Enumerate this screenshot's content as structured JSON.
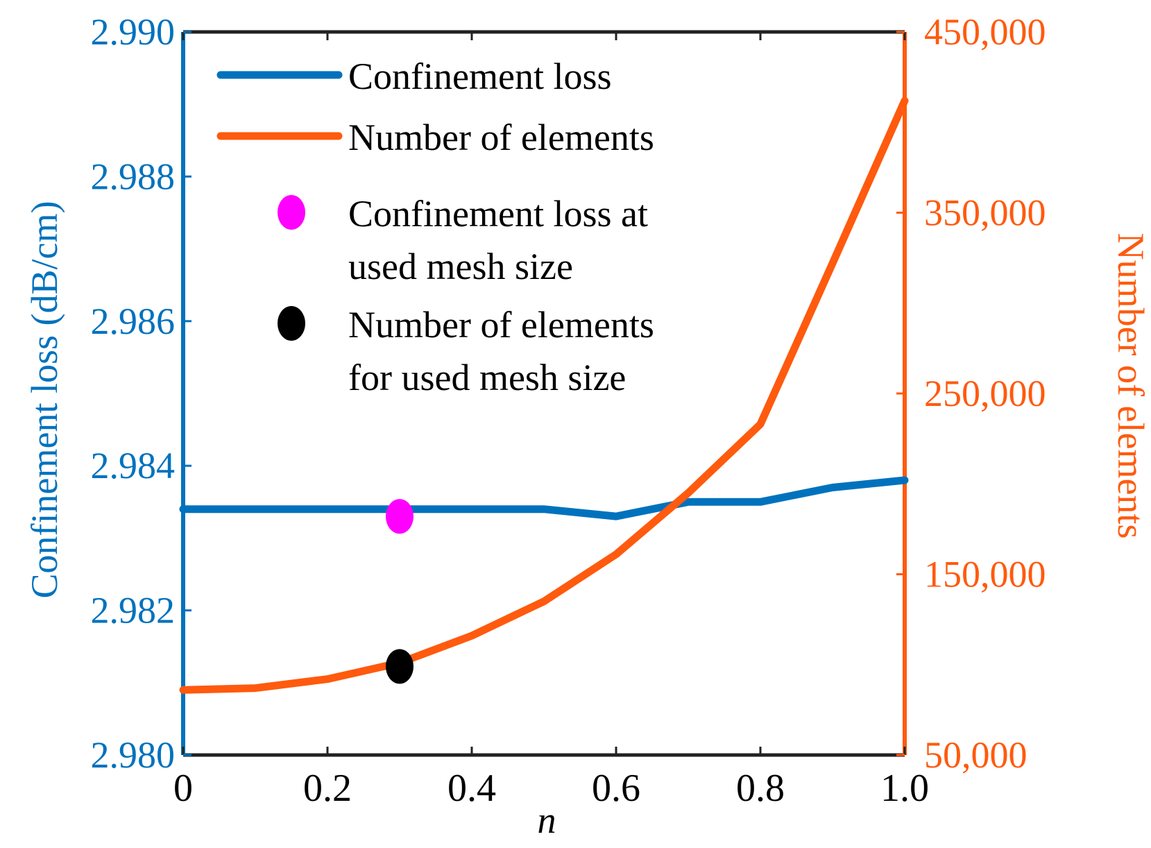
{
  "chart_data": {
    "type": "line",
    "xlabel": "n",
    "ylabel_left": "Confinement loss (dB/cm)",
    "ylabel_right": "Number of elements",
    "xlim": [
      0,
      1.0
    ],
    "ylim_left": [
      2.98,
      2.99
    ],
    "ylim_right": [
      50000,
      450000
    ],
    "x_ticks": [
      "0",
      "0.2",
      "0.4",
      "0.6",
      "0.8",
      "1.0"
    ],
    "x_tick_values": [
      0,
      0.2,
      0.4,
      0.6,
      0.8,
      1.0
    ],
    "left_ticks": [
      "2.980",
      "2.982",
      "2.984",
      "2.986",
      "2.988",
      "2.990"
    ],
    "left_tick_values": [
      2.98,
      2.982,
      2.984,
      2.986,
      2.988,
      2.99
    ],
    "right_ticks": [
      "50,000",
      "150,000",
      "250,000",
      "350,000",
      "450,000"
    ],
    "right_tick_values": [
      50000,
      150000,
      250000,
      350000,
      450000
    ],
    "series": [
      {
        "name": "Confinement loss",
        "axis": "left",
        "color": "#0072BD",
        "x": [
          0,
          0.1,
          0.2,
          0.3,
          0.4,
          0.5,
          0.6,
          0.7,
          0.8,
          0.9,
          1.0
        ],
        "y": [
          2.9834,
          2.9834,
          2.9834,
          2.9834,
          2.9834,
          2.9834,
          2.9833,
          2.9835,
          2.9835,
          2.9837,
          2.9838
        ]
      },
      {
        "name": "Number of elements",
        "axis": "right",
        "color": "#FF5A0E",
        "x": [
          0,
          0.1,
          0.2,
          0.3,
          0.4,
          0.5,
          0.6,
          0.7,
          0.8,
          0.9,
          1.0
        ],
        "y": [
          86000,
          87000,
          92000,
          101000,
          116000,
          135000,
          161000,
          195000,
          233000,
          322000,
          412000
        ]
      }
    ],
    "markers": [
      {
        "name": "Confinement loss at used mesh size",
        "axis": "left",
        "x": 0.3,
        "y": 2.9833,
        "color": "#FF00FF"
      },
      {
        "name": "Number of elements for used mesh size",
        "axis": "right",
        "x": 0.3,
        "y": 99000,
        "color": "#000000"
      }
    ],
    "legend": {
      "placement": "top-left",
      "entries": [
        {
          "label": "Confinement loss",
          "kind": "line",
          "color": "#0072BD"
        },
        {
          "label": "Number of elements",
          "kind": "line",
          "color": "#FF5A0E"
        },
        {
          "label": [
            "Confinement loss at",
            "used mesh size"
          ],
          "kind": "dot",
          "color": "#FF00FF"
        },
        {
          "label": [
            "Number of elements",
            "for used mesh size"
          ],
          "kind": "dot",
          "color": "#000000"
        }
      ]
    },
    "colors": {
      "left_axis": "#0072BD",
      "right_axis": "#FF5A0E",
      "frame": "#222222"
    }
  }
}
